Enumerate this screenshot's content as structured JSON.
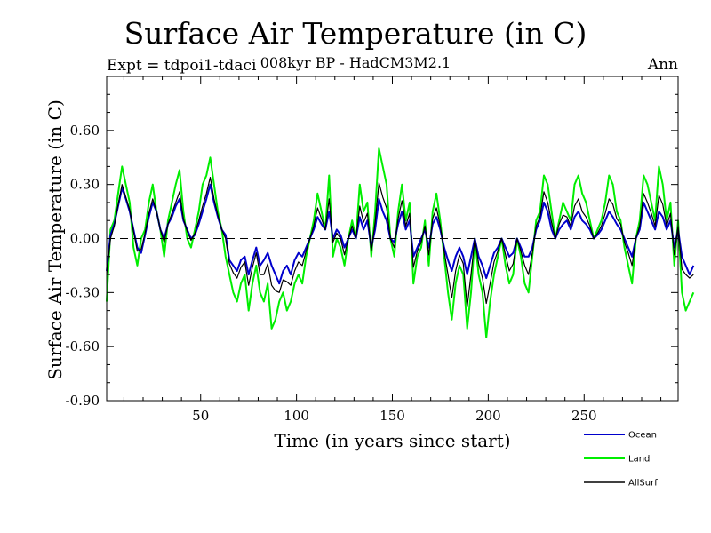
{
  "chart_data": {
    "type": "line",
    "title": "Surface Air Temperature (in C)",
    "subtitle": "008kyr BP - HadCM3M2.1",
    "expt_label": "Expt = tdpoi1-tdaci",
    "period_label": "Ann",
    "xlabel": "Time (in years since start)",
    "ylabel": "Surface Air Temperature (in C)",
    "xlim": [
      1,
      299
    ],
    "ylim": [
      -0.9,
      0.9
    ],
    "xticks": [
      50,
      100,
      150,
      200,
      250
    ],
    "xtick_labels": [
      "50",
      "100",
      "150",
      "200",
      "250"
    ],
    "yticks": [
      -0.9,
      -0.6,
      -0.3,
      0.0,
      0.3,
      0.6
    ],
    "ytick_labels": [
      "-0.90",
      "-0.60",
      "-0.30",
      "0.00",
      "0.30",
      "0.60"
    ],
    "reference_line": 0.0,
    "legend_position": "bottom-right, outside plot",
    "colors": {
      "Ocean": "#0000cc",
      "Land": "#00ee00",
      "AllSurf": "#000000"
    },
    "x_start": 1,
    "x_step": 2,
    "series": [
      {
        "name": "Ocean",
        "values": [
          -0.18,
          0.02,
          0.08,
          0.18,
          0.28,
          0.22,
          0.15,
          0.05,
          -0.05,
          -0.08,
          0.02,
          0.12,
          0.2,
          0.15,
          0.05,
          0.0,
          0.08,
          0.12,
          0.18,
          0.22,
          0.1,
          0.05,
          0.0,
          0.02,
          0.08,
          0.15,
          0.22,
          0.3,
          0.2,
          0.12,
          0.05,
          0.02,
          -0.12,
          -0.15,
          -0.18,
          -0.12,
          -0.1,
          -0.2,
          -0.12,
          -0.05,
          -0.15,
          -0.12,
          -0.08,
          -0.15,
          -0.2,
          -0.25,
          -0.18,
          -0.15,
          -0.2,
          -0.12,
          -0.08,
          -0.1,
          -0.05,
          0.0,
          0.05,
          0.12,
          0.08,
          0.05,
          0.15,
          0.0,
          0.05,
          0.02,
          -0.05,
          0.0,
          0.05,
          0.0,
          0.12,
          0.05,
          0.1,
          -0.05,
          0.05,
          0.22,
          0.15,
          0.1,
          0.0,
          -0.02,
          0.08,
          0.15,
          0.05,
          0.1,
          -0.1,
          -0.05,
          0.0,
          0.05,
          -0.05,
          0.08,
          0.12,
          0.05,
          -0.05,
          -0.12,
          -0.18,
          -0.1,
          -0.05,
          -0.1,
          -0.2,
          -0.1,
          0.0,
          -0.1,
          -0.15,
          -0.22,
          -0.15,
          -0.08,
          -0.05,
          0.0,
          -0.05,
          -0.1,
          -0.08,
          0.0,
          -0.05,
          -0.1,
          -0.1,
          -0.05,
          0.05,
          0.1,
          0.2,
          0.15,
          0.05,
          0.0,
          0.05,
          0.08,
          0.1,
          0.05,
          0.12,
          0.15,
          0.1,
          0.08,
          0.05,
          0.0,
          0.02,
          0.05,
          0.1,
          0.15,
          0.12,
          0.08,
          0.05,
          0.0,
          -0.05,
          -0.1,
          0.0,
          0.05,
          0.2,
          0.15,
          0.1,
          0.05,
          0.15,
          0.12,
          0.05,
          0.1,
          -0.05,
          0.05,
          -0.1,
          -0.15,
          -0.2,
          -0.15
        ]
      },
      {
        "name": "Land",
        "values": [
          -0.35,
          0.05,
          0.1,
          0.25,
          0.4,
          0.3,
          0.2,
          -0.05,
          -0.15,
          0.0,
          0.05,
          0.2,
          0.3,
          0.15,
          0.05,
          -0.1,
          0.1,
          0.2,
          0.3,
          0.38,
          0.15,
          0.0,
          -0.05,
          0.05,
          0.15,
          0.3,
          0.35,
          0.45,
          0.3,
          0.15,
          0.05,
          -0.1,
          -0.2,
          -0.3,
          -0.35,
          -0.25,
          -0.2,
          -0.4,
          -0.25,
          -0.15,
          -0.3,
          -0.35,
          -0.25,
          -0.5,
          -0.45,
          -0.35,
          -0.3,
          -0.4,
          -0.35,
          -0.25,
          -0.2,
          -0.25,
          -0.1,
          0.0,
          0.1,
          0.25,
          0.15,
          0.05,
          0.35,
          -0.1,
          0.0,
          -0.05,
          -0.15,
          0.0,
          0.1,
          0.0,
          0.3,
          0.15,
          0.2,
          -0.1,
          0.15,
          0.5,
          0.4,
          0.3,
          0.0,
          -0.1,
          0.15,
          0.3,
          0.1,
          0.2,
          -0.25,
          -0.1,
          -0.05,
          0.1,
          -0.15,
          0.15,
          0.25,
          0.1,
          -0.1,
          -0.3,
          -0.45,
          -0.25,
          -0.15,
          -0.2,
          -0.5,
          -0.3,
          0.0,
          -0.2,
          -0.3,
          -0.55,
          -0.35,
          -0.2,
          -0.1,
          0.0,
          -0.15,
          -0.25,
          -0.2,
          0.0,
          -0.1,
          -0.25,
          -0.3,
          -0.1,
          0.1,
          0.15,
          0.35,
          0.3,
          0.15,
          0.0,
          0.1,
          0.2,
          0.15,
          0.1,
          0.3,
          0.35,
          0.25,
          0.2,
          0.1,
          0.0,
          0.05,
          0.1,
          0.2,
          0.35,
          0.3,
          0.15,
          0.1,
          -0.05,
          -0.15,
          -0.25,
          0.0,
          0.1,
          0.35,
          0.3,
          0.2,
          0.1,
          0.4,
          0.3,
          0.1,
          0.2,
          -0.15,
          0.1,
          -0.3,
          -0.4,
          -0.35,
          -0.3
        ]
      },
      {
        "name": "AllSurf",
        "values": [
          -0.2,
          0.0,
          0.07,
          0.19,
          0.3,
          0.23,
          0.16,
          0.04,
          -0.07,
          -0.06,
          0.03,
          0.14,
          0.22,
          0.15,
          0.05,
          -0.02,
          0.08,
          0.14,
          0.2,
          0.26,
          0.11,
          0.04,
          -0.01,
          0.03,
          0.1,
          0.18,
          0.25,
          0.34,
          0.22,
          0.13,
          0.05,
          0.0,
          -0.14,
          -0.19,
          -0.22,
          -0.16,
          -0.13,
          -0.26,
          -0.16,
          -0.08,
          -0.2,
          -0.2,
          -0.14,
          -0.26,
          -0.29,
          -0.3,
          -0.23,
          -0.24,
          -0.26,
          -0.18,
          -0.13,
          -0.15,
          -0.07,
          0.0,
          0.07,
          0.17,
          0.11,
          0.05,
          0.22,
          -0.02,
          0.03,
          0.0,
          -0.09,
          0.0,
          0.07,
          0.0,
          0.18,
          0.09,
          0.14,
          -0.07,
          0.09,
          0.31,
          0.23,
          0.17,
          0.0,
          -0.05,
          0.11,
          0.21,
          0.07,
          0.14,
          -0.16,
          -0.07,
          -0.02,
          0.07,
          -0.09,
          0.11,
          0.17,
          0.07,
          -0.07,
          -0.2,
          -0.33,
          -0.18,
          -0.09,
          -0.14,
          -0.38,
          -0.2,
          0.0,
          -0.14,
          -0.22,
          -0.36,
          -0.25,
          -0.13,
          -0.07,
          0.0,
          -0.09,
          -0.18,
          -0.14,
          0.0,
          -0.07,
          -0.15,
          -0.2,
          -0.08,
          0.07,
          0.12,
          0.26,
          0.2,
          0.09,
          0.0,
          0.08,
          0.13,
          0.12,
          0.07,
          0.18,
          0.22,
          0.15,
          0.12,
          0.07,
          0.0,
          0.03,
          0.07,
          0.14,
          0.22,
          0.19,
          0.11,
          0.08,
          -0.02,
          -0.08,
          -0.15,
          0.0,
          0.07,
          0.25,
          0.2,
          0.14,
          0.07,
          0.24,
          0.19,
          0.07,
          0.14,
          -0.09,
          0.07,
          -0.17,
          -0.2,
          -0.22,
          -0.2
        ]
      }
    ]
  }
}
